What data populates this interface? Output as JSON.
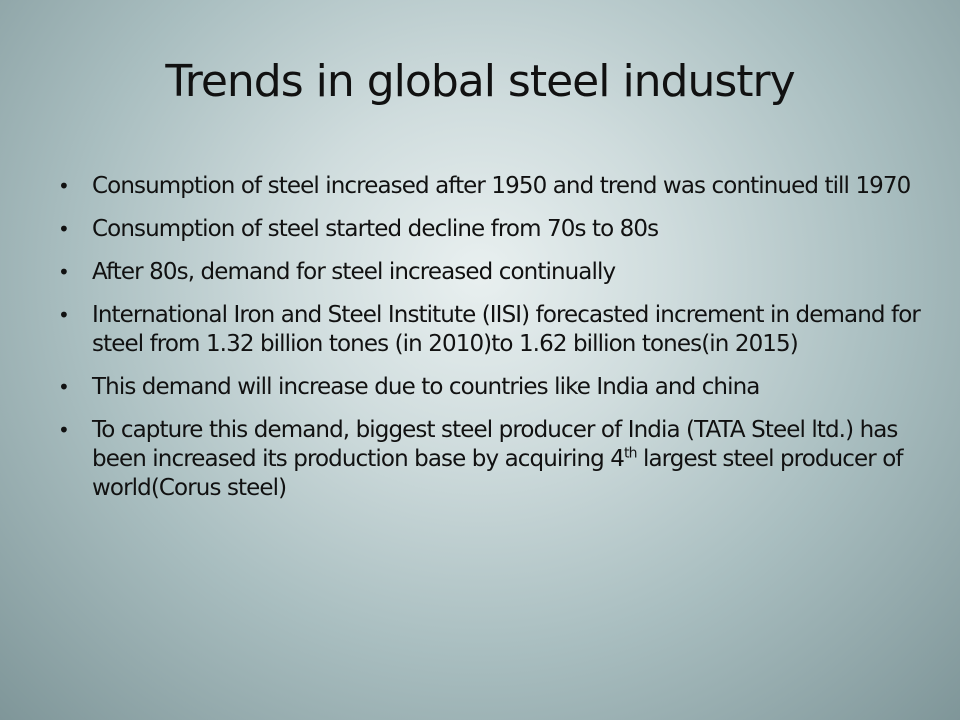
{
  "slide": {
    "title": "Trends in global steel industry",
    "bullet_symbol": "•",
    "bullets": [
      "Consumption of steel increased after 1950 and trend was continued till  1970",
      "Consumption of steel started decline from 70s to 80s",
      "After 80s, demand for steel  increased continually",
      "International Iron and Steel Institute (IISI) forecasted increment in demand for steel from 1.32 billion tones (in 2010)to 1.62 billion tones(in 2015)",
      "This demand will increase due to countries like India and china"
    ],
    "last_bullet": {
      "before_sup": "To capture this demand, biggest steel producer of India  (TATA Steel ltd.) has been increased its production base by acquiring 4",
      "sup": "th",
      "after_sup": " largest  steel producer of world(Corus steel)"
    }
  }
}
